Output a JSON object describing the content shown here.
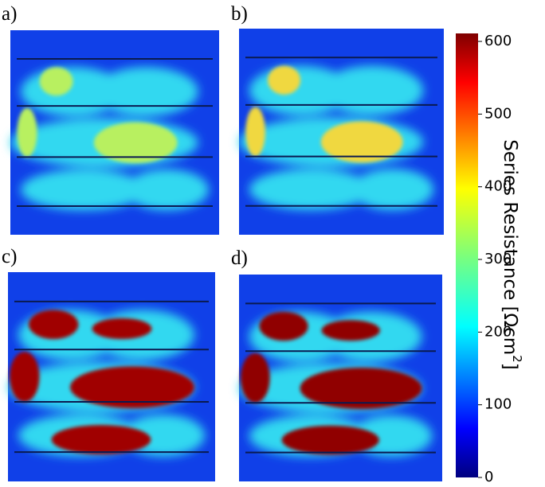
{
  "chart_data": {
    "type": "colorbar",
    "panels": [
      "a)",
      "b)",
      "c)",
      "d)"
    ],
    "colorbar_label": "Series Resistance [Ωcm",
    "colorbar_label_superscript": "2",
    "colorbar_label_end": "]",
    "colormap": "jet",
    "ylim": [
      0,
      611
    ],
    "yticks": [
      0,
      100,
      200,
      300,
      400,
      500,
      600
    ]
  }
}
